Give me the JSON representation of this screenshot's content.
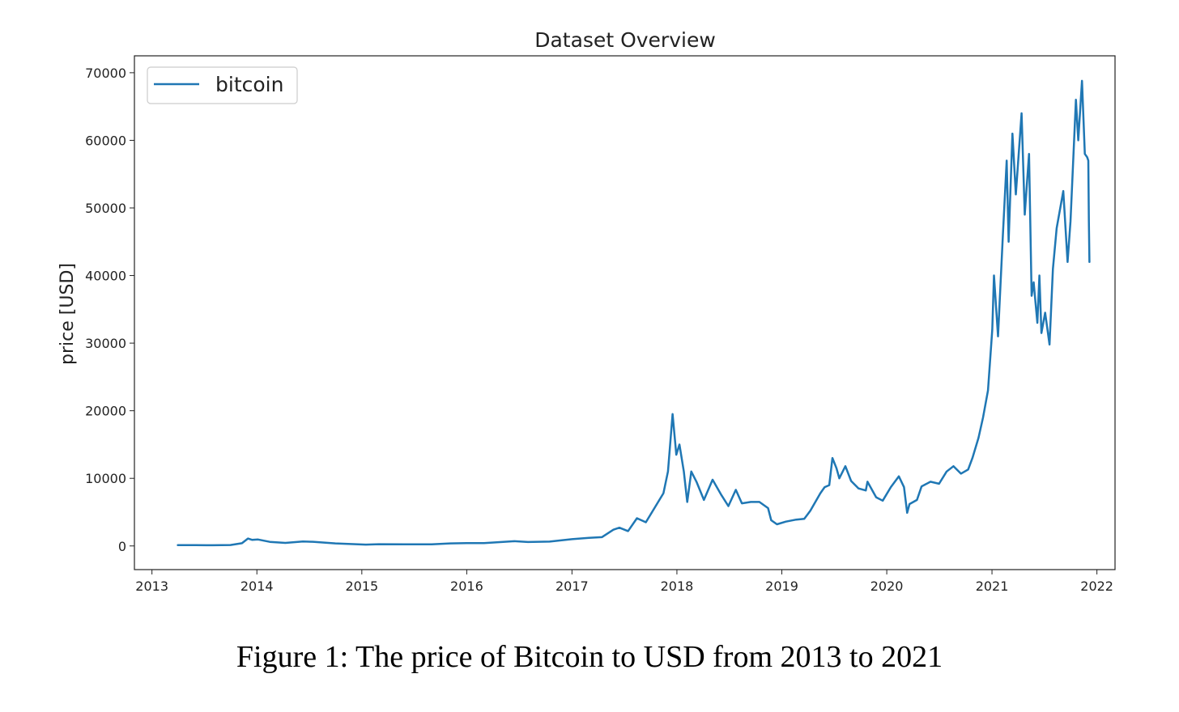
{
  "caption": "Figure 1: The price of Bitcoin to USD from 2013 to 2021",
  "chart_data": {
    "type": "line",
    "title": "Dataset Overview",
    "xlabel": "",
    "ylabel": "price [USD]",
    "xlim": [
      "2012-11-01",
      "2022-03-05"
    ],
    "ylim": [
      -3500,
      72500
    ],
    "x_ticks": [
      "2013",
      "2014",
      "2015",
      "2016",
      "2017",
      "2018",
      "2019",
      "2020",
      "2021",
      "2022"
    ],
    "y_ticks": [
      0,
      10000,
      20000,
      30000,
      40000,
      50000,
      60000,
      70000
    ],
    "grid": false,
    "legend": {
      "position": "top-left",
      "entries": [
        "bitcoin"
      ]
    },
    "colors": {
      "line": "#1f77b4",
      "axes": "#222222"
    },
    "series": [
      {
        "name": "bitcoin",
        "points": [
          [
            "2013-04-01",
            110
          ],
          [
            "2013-06-01",
            110
          ],
          [
            "2013-08-01",
            100
          ],
          [
            "2013-10-01",
            140
          ],
          [
            "2013-11-10",
            400
          ],
          [
            "2013-12-01",
            1100
          ],
          [
            "2013-12-15",
            900
          ],
          [
            "2014-01-05",
            950
          ],
          [
            "2014-02-15",
            600
          ],
          [
            "2014-04-10",
            450
          ],
          [
            "2014-06-10",
            650
          ],
          [
            "2014-07-15",
            620
          ],
          [
            "2014-10-01",
            380
          ],
          [
            "2015-01-15",
            200
          ],
          [
            "2015-03-01",
            260
          ],
          [
            "2015-06-01",
            240
          ],
          [
            "2015-09-01",
            230
          ],
          [
            "2015-11-05",
            380
          ],
          [
            "2016-01-01",
            430
          ],
          [
            "2016-03-01",
            420
          ],
          [
            "2016-06-15",
            700
          ],
          [
            "2016-08-01",
            580
          ],
          [
            "2016-10-15",
            640
          ],
          [
            "2017-01-01",
            1000
          ],
          [
            "2017-03-01",
            1200
          ],
          [
            "2017-04-15",
            1300
          ],
          [
            "2017-05-25",
            2400
          ],
          [
            "2017-06-15",
            2700
          ],
          [
            "2017-07-15",
            2200
          ],
          [
            "2017-08-15",
            4100
          ],
          [
            "2017-09-15",
            3500
          ],
          [
            "2017-10-15",
            5600
          ],
          [
            "2017-11-15",
            7800
          ],
          [
            "2017-12-01",
            11000
          ],
          [
            "2017-12-17",
            19500
          ],
          [
            "2017-12-30",
            13500
          ],
          [
            "2018-01-10",
            15000
          ],
          [
            "2018-01-25",
            11000
          ],
          [
            "2018-02-06",
            6500
          ],
          [
            "2018-02-20",
            11000
          ],
          [
            "2018-03-10",
            9500
          ],
          [
            "2018-04-05",
            6800
          ],
          [
            "2018-05-05",
            9800
          ],
          [
            "2018-06-05",
            7500
          ],
          [
            "2018-06-29",
            5900
          ],
          [
            "2018-07-25",
            8300
          ],
          [
            "2018-08-15",
            6300
          ],
          [
            "2018-09-15",
            6500
          ],
          [
            "2018-10-15",
            6500
          ],
          [
            "2018-11-14",
            5600
          ],
          [
            "2018-11-25",
            3800
          ],
          [
            "2018-12-15",
            3200
          ],
          [
            "2019-01-15",
            3600
          ],
          [
            "2019-02-20",
            3900
          ],
          [
            "2019-03-20",
            4000
          ],
          [
            "2019-04-10",
            5200
          ],
          [
            "2019-05-15",
            7800
          ],
          [
            "2019-05-30",
            8700
          ],
          [
            "2019-06-15",
            9000
          ],
          [
            "2019-06-26",
            13000
          ],
          [
            "2019-07-10",
            11500
          ],
          [
            "2019-07-20",
            10000
          ],
          [
            "2019-08-10",
            11800
          ],
          [
            "2019-08-30",
            9600
          ],
          [
            "2019-09-25",
            8500
          ],
          [
            "2019-10-20",
            8200
          ],
          [
            "2019-10-26",
            9500
          ],
          [
            "2019-11-25",
            7200
          ],
          [
            "2019-12-18",
            6700
          ],
          [
            "2020-01-15",
            8700
          ],
          [
            "2020-02-12",
            10300
          ],
          [
            "2020-03-01",
            8700
          ],
          [
            "2020-03-12",
            4900
          ],
          [
            "2020-03-20",
            6200
          ],
          [
            "2020-04-15",
            6800
          ],
          [
            "2020-05-01",
            8800
          ],
          [
            "2020-06-01",
            9500
          ],
          [
            "2020-07-01",
            9200
          ],
          [
            "2020-07-27",
            11000
          ],
          [
            "2020-08-20",
            11800
          ],
          [
            "2020-09-15",
            10700
          ],
          [
            "2020-10-10",
            11300
          ],
          [
            "2020-10-25",
            13000
          ],
          [
            "2020-11-15",
            16000
          ],
          [
            "2020-12-01",
            19000
          ],
          [
            "2020-12-18",
            23000
          ],
          [
            "2021-01-02",
            32000
          ],
          [
            "2021-01-08",
            40000
          ],
          [
            "2021-01-22",
            31000
          ],
          [
            "2021-02-08",
            46000
          ],
          [
            "2021-02-21",
            57000
          ],
          [
            "2021-02-28",
            45000
          ],
          [
            "2021-03-13",
            61000
          ],
          [
            "2021-03-25",
            52000
          ],
          [
            "2021-04-14",
            64000
          ],
          [
            "2021-04-25",
            49000
          ],
          [
            "2021-05-10",
            58000
          ],
          [
            "2021-05-19",
            37000
          ],
          [
            "2021-05-26",
            39000
          ],
          [
            "2021-06-08",
            33000
          ],
          [
            "2021-06-15",
            40000
          ],
          [
            "2021-06-22",
            31500
          ],
          [
            "2021-07-05",
            34500
          ],
          [
            "2021-07-20",
            29800
          ],
          [
            "2021-08-01",
            41000
          ],
          [
            "2021-08-14",
            47000
          ],
          [
            "2021-09-06",
            52500
          ],
          [
            "2021-09-21",
            42000
          ],
          [
            "2021-10-01",
            48000
          ],
          [
            "2021-10-20",
            66000
          ],
          [
            "2021-10-28",
            60000
          ],
          [
            "2021-11-10",
            68800
          ],
          [
            "2021-11-20",
            58000
          ],
          [
            "2021-11-28",
            57500
          ],
          [
            "2021-12-02",
            57000
          ],
          [
            "2021-12-04",
            48000
          ],
          [
            "2021-12-06",
            42000
          ]
        ]
      }
    ]
  }
}
